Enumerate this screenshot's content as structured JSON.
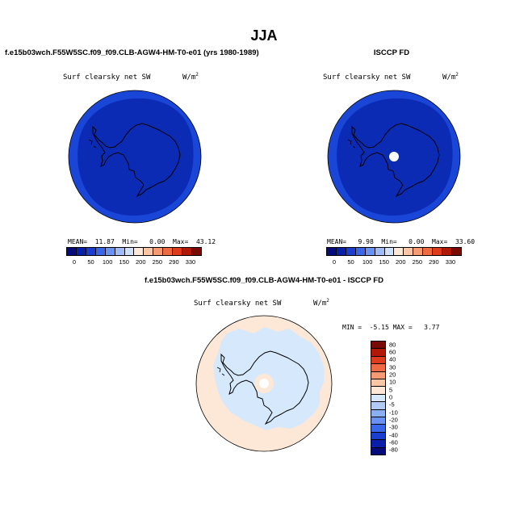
{
  "title": "JJA",
  "panels": {
    "left": {
      "case_title": "f.e15b03wch.F55W5SC.f09_f09.CLB-AGW4-HM-T0-e01 (yrs 1980-1989)",
      "var_label": "Surf clearsky net SW",
      "units": "W/m",
      "units_sup": "2",
      "stats": "MEAN=  11.87  Min=   0.00  Max=  43.12",
      "fill_outer": "#1a46d8",
      "fill_inner": "#0b2bb4"
    },
    "right": {
      "case_title": "ISCCP FD",
      "var_label": "Surf clearsky net SW",
      "units": "W/m",
      "units_sup": "2",
      "stats": "MEAN=   9.98  Min=   0.00  Max=  33.60",
      "fill_outer": "#1a46d8",
      "fill_inner": "#0b2bb4"
    },
    "diff": {
      "case_title": "f.e15b03wch.F55W5SC.f09_f09.CLB-AGW4-HM-T0-e01 - ISCCP FD",
      "var_label": "Surf clearsky net SW",
      "units": "W/m",
      "units_sup": "2",
      "stats": "MIN =  -5.15 MAX =   3.77",
      "fill_outer": "#fde8d8",
      "fill_inner": "#d6e8fb"
    }
  },
  "colorbar_abs": {
    "colors": [
      "#050b7a",
      "#0a1fa8",
      "#1a3fd0",
      "#3a66e8",
      "#6a92f2",
      "#9ebcf7",
      "#cfe0fb",
      "#fde8d8",
      "#fbc6a6",
      "#f59a72",
      "#ee6a42",
      "#dc3b1c",
      "#b01808",
      "#7a0a04"
    ],
    "ticks": [
      "0",
      "50",
      "100",
      "150",
      "200",
      "250",
      "290",
      "330"
    ]
  },
  "colorbar_diff": {
    "colors": [
      "#7a0a04",
      "#b01808",
      "#dc3b1c",
      "#ee6a42",
      "#f59a72",
      "#fbc6a6",
      "#fde8d8",
      "#d6e8fb",
      "#b0cbf6",
      "#8aaff2",
      "#6a92f2",
      "#3a66e8",
      "#1a3fd0",
      "#0a1fa8",
      "#050b7a"
    ],
    "ticks": [
      "80",
      "60",
      "40",
      "30",
      "20",
      "10",
      "5",
      "0",
      "-5",
      "-10",
      "-20",
      "-30",
      "-40",
      "-60",
      "-80"
    ]
  }
}
